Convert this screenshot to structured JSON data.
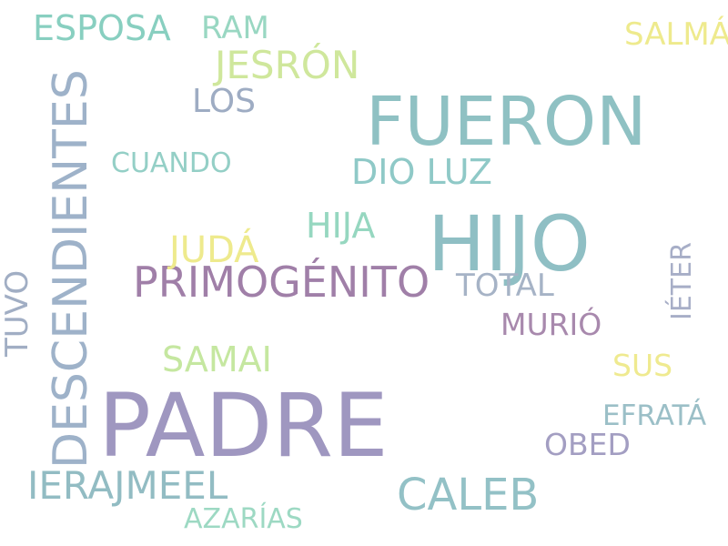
{
  "words": [
    {
      "id": "padre",
      "text": "PADRE",
      "color": "#9f97c0",
      "vertical": false
    },
    {
      "id": "hijo",
      "text": "HIJO",
      "color": "#8fbfc4",
      "vertical": false
    },
    {
      "id": "fueron",
      "text": "FUERON",
      "color": "#8fc1c3",
      "vertical": false
    },
    {
      "id": "descendientes",
      "text": "DESCENDIENTES",
      "color": "#9eb2c9",
      "vertical": true
    },
    {
      "id": "primogenito",
      "text": "PRIMOGÉNITO",
      "color": "#a07fa8",
      "vertical": false
    },
    {
      "id": "caleb",
      "text": "CALEB",
      "color": "#93c1c6",
      "vertical": false
    },
    {
      "id": "ierajmeel",
      "text": "IERAJMEEL",
      "color": "#92bcc3",
      "vertical": false
    },
    {
      "id": "jesron",
      "text": "JESRÓN",
      "color": "#cfe79c",
      "vertical": false
    },
    {
      "id": "esposa",
      "text": "ESPOSA",
      "color": "#88cfc0",
      "vertical": false
    },
    {
      "id": "dio-luz",
      "text": "DIO LUZ",
      "color": "#8fc9c7",
      "vertical": false
    },
    {
      "id": "juda",
      "text": "JUDÁ",
      "color": "#eeea8d",
      "vertical": false
    },
    {
      "id": "samai",
      "text": "SAMAI",
      "color": "#c5e7a0",
      "vertical": false
    },
    {
      "id": "hija",
      "text": "HIJA",
      "color": "#96d7c0",
      "vertical": false
    },
    {
      "id": "los",
      "text": "LOS",
      "color": "#9eacc3",
      "vertical": false
    },
    {
      "id": "ram",
      "text": "RAM",
      "color": "#99d7c2",
      "vertical": false
    },
    {
      "id": "salma",
      "text": "SALMÁ",
      "color": "#eeea8d",
      "vertical": false
    },
    {
      "id": "total",
      "text": "TOTAL",
      "color": "#a6b3c6",
      "vertical": false
    },
    {
      "id": "murio",
      "text": "MURIÓ",
      "color": "#a889ad",
      "vertical": false
    },
    {
      "id": "cuando",
      "text": "CUANDO",
      "color": "#94cfc6",
      "vertical": false
    },
    {
      "id": "obed",
      "text": "OBED",
      "color": "#a39ec2",
      "vertical": false
    },
    {
      "id": "efrata",
      "text": "EFRATÁ",
      "color": "#9bbfc7",
      "vertical": false
    },
    {
      "id": "sus",
      "text": "SUS",
      "color": "#efea90",
      "vertical": false
    },
    {
      "id": "azarias",
      "text": "AZARÍAS",
      "color": "#9dd9c3",
      "vertical": false
    },
    {
      "id": "tuvo",
      "text": "TUVO",
      "color": "#a1aec4",
      "vertical": true
    },
    {
      "id": "ieter",
      "text": "IÉTER",
      "color": "#a7aec7",
      "vertical": true
    }
  ]
}
